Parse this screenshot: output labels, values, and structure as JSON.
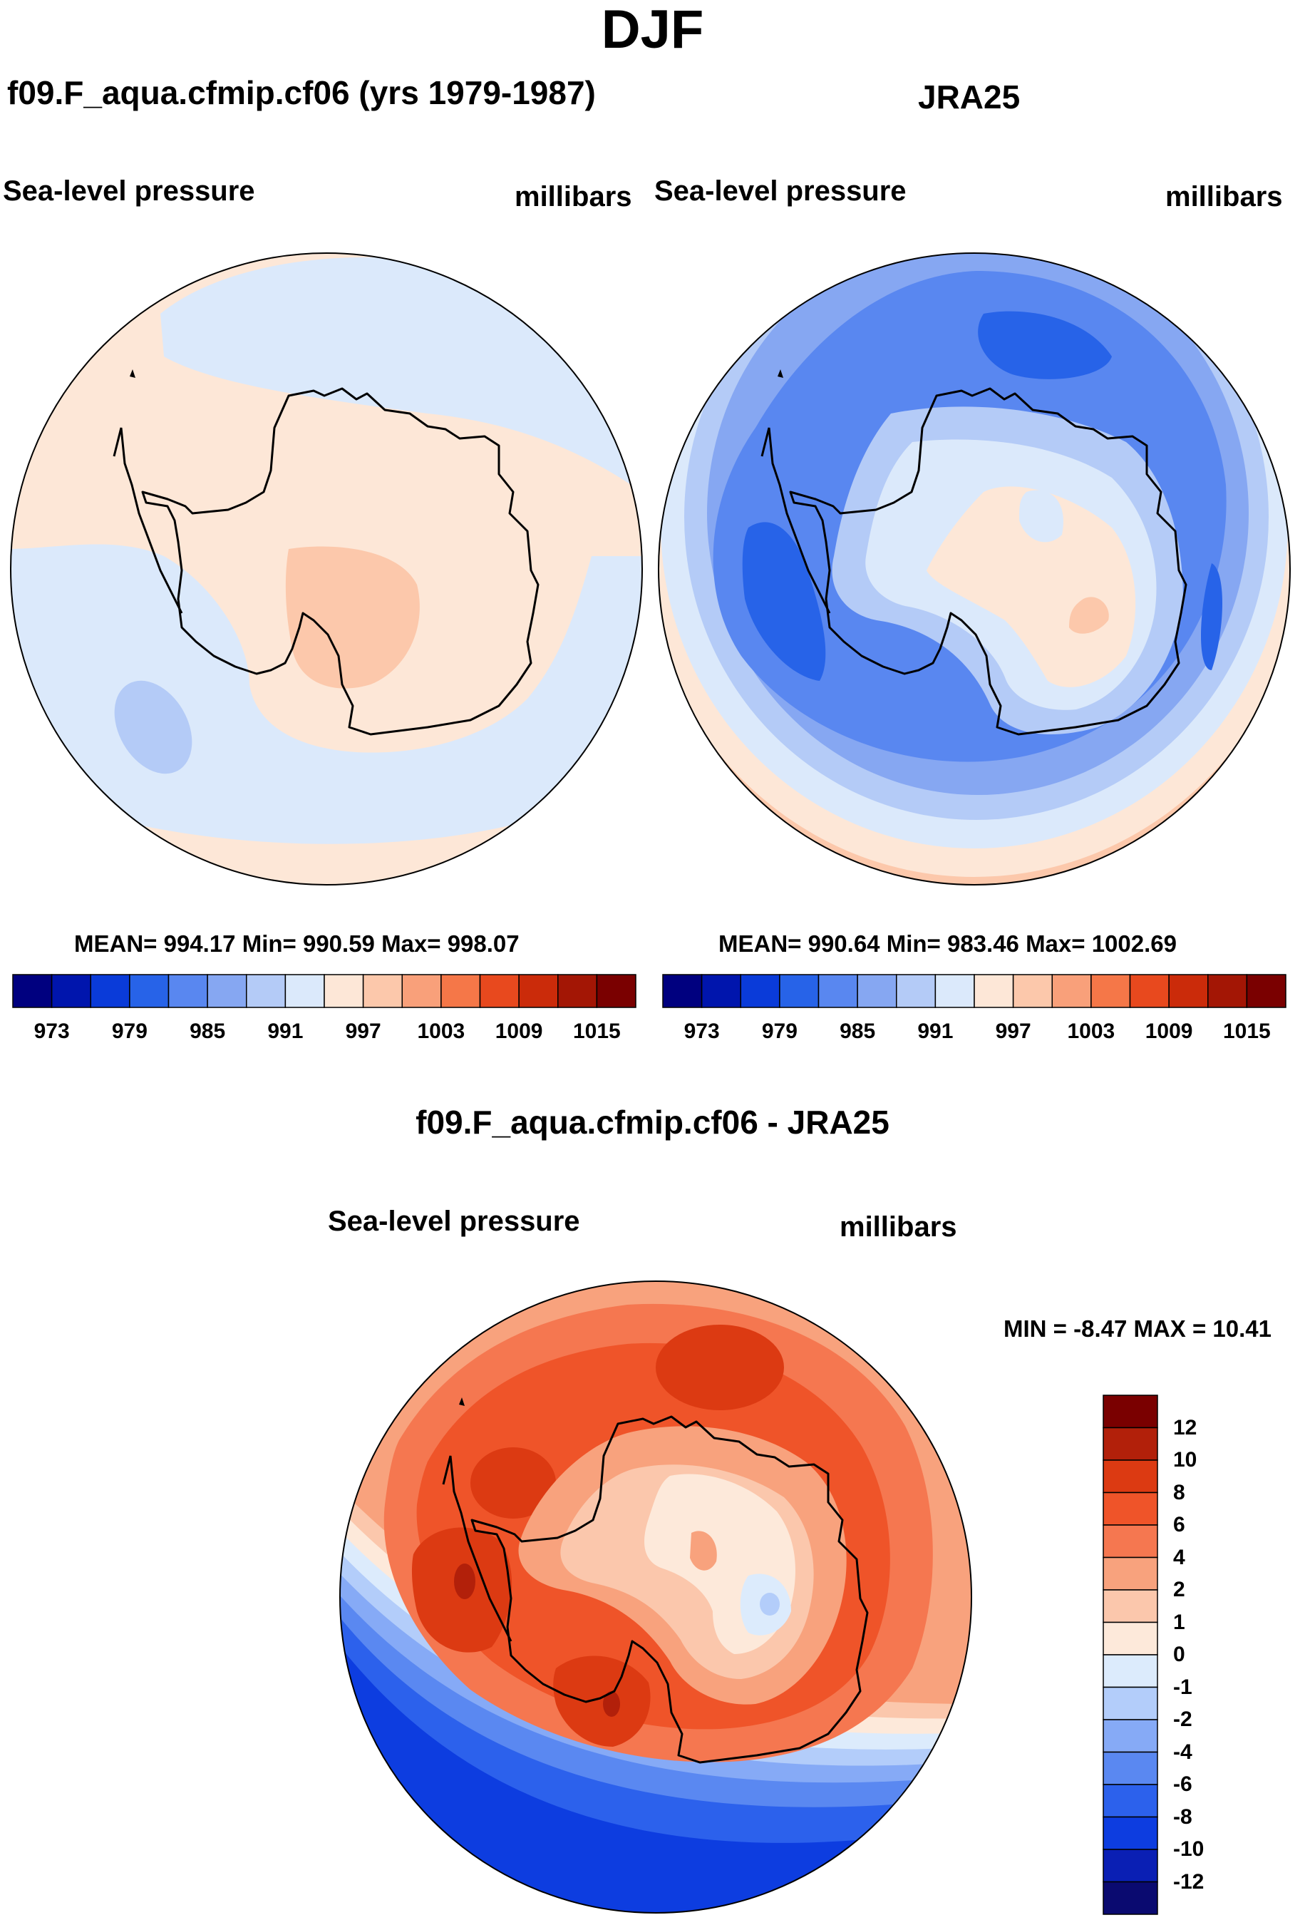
{
  "title": "DJF",
  "colors": {
    "abs_levels": [
      "#00007f",
      "#0015ad",
      "#0a3bd9",
      "#2763e8",
      "#5987f0",
      "#86a7f2",
      "#b4cbf7",
      "#dbe9fb",
      "#fde7d7",
      "#fcc8ab",
      "#f9a07a",
      "#f57748",
      "#e8491e",
      "#cb2b0a",
      "#a31605",
      "#7a0000"
    ],
    "diff_levels": [
      "#0a0a70",
      "#0a1fb4",
      "#0d3de0",
      "#2c61ec",
      "#5a88f1",
      "#86aaf6",
      "#b3cdfa",
      "#dcebfc",
      "#fde9da",
      "#fbc7ac",
      "#f8a27d",
      "#f57750",
      "#ef5429",
      "#dc3a12",
      "#b2200a",
      "#7a0000"
    ],
    "coast": "#000000"
  },
  "panels": [
    {
      "case": "f09.F_aqua.cfmip.cf06 (yrs 1979-1987)",
      "variable": "Sea-level pressure",
      "units": "millibars",
      "stats": "MEAN= 994.17  Min= 990.59  Max= 998.07"
    },
    {
      "case": "JRA25",
      "variable": "Sea-level pressure",
      "units": "millibars",
      "stats": "MEAN= 990.64  Min= 983.46  Max= 1002.69"
    },
    {
      "case": "f09.F_aqua.cfmip.cf06 - JRA25",
      "variable": "Sea-level pressure",
      "units": "millibars",
      "stats": "MIN =  -8.47 MAX =  10.41"
    }
  ],
  "abs_colorbar_labels": [
    "973",
    "979",
    "985",
    "991",
    "997",
    "1003",
    "1009",
    "1015"
  ],
  "diff_colorbar_labels": [
    "12",
    "10",
    "8",
    "6",
    "4",
    "2",
    "1",
    "0",
    "-1",
    "-2",
    "-4",
    "-6",
    "-8",
    "-10",
    "-12"
  ],
  "chart_data": [
    {
      "type": "heatmap",
      "title": "f09.F_aqua.cfmip.cf06 (yrs 1979-1987)",
      "projection": "south polar stereographic",
      "variable": "Sea-level pressure",
      "units": "millibars",
      "season": "DJF",
      "levels": [
        973,
        976,
        979,
        982,
        985,
        988,
        991,
        994,
        997,
        1000,
        1003,
        1006,
        1009,
        1012,
        1015
      ],
      "mean": 994.17,
      "min": 990.59,
      "max": 998.07
    },
    {
      "type": "heatmap",
      "title": "JRA25",
      "projection": "south polar stereographic",
      "variable": "Sea-level pressure",
      "units": "millibars",
      "season": "DJF",
      "levels": [
        973,
        976,
        979,
        982,
        985,
        988,
        991,
        994,
        997,
        1000,
        1003,
        1006,
        1009,
        1012,
        1015
      ],
      "mean": 990.64,
      "min": 983.46,
      "max": 1002.69
    },
    {
      "type": "heatmap",
      "title": "f09.F_aqua.cfmip.cf06 - JRA25",
      "projection": "south polar stereographic",
      "variable": "Sea-level pressure difference",
      "units": "millibars",
      "season": "DJF",
      "levels": [
        -12,
        -10,
        -8,
        -6,
        -4,
        -2,
        -1,
        0,
        1,
        2,
        4,
        6,
        8,
        10,
        12
      ],
      "min": -8.47,
      "max": 10.41
    }
  ]
}
